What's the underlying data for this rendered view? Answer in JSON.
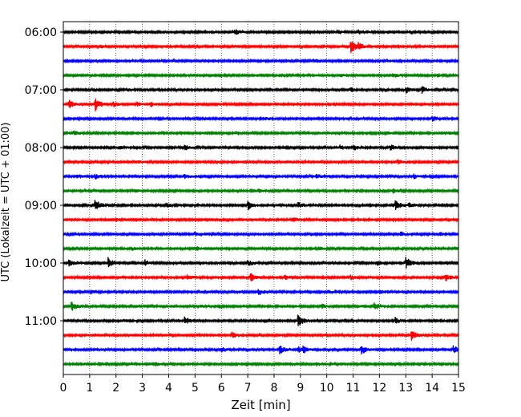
{
  "chart_data": {
    "type": "line",
    "title": "",
    "xlabel": "Zeit  [min]",
    "ylabel": "UTC (Lokalzeit = UTC + 01:00)",
    "xlim": [
      0,
      15
    ],
    "x_ticks": [
      0,
      1,
      2,
      3,
      4,
      5,
      6,
      7,
      8,
      9,
      10,
      11,
      12,
      13,
      14,
      15
    ],
    "x_tick_labels": [
      "0",
      "1",
      "2",
      "3",
      "4",
      "5",
      "6",
      "7",
      "8",
      "9",
      "10",
      "11",
      "12",
      "13",
      "14",
      "15"
    ],
    "y_tick_labels": [
      "06:00",
      "07:00",
      "08:00",
      "09:00",
      "10:00",
      "11:00"
    ],
    "y_tick_traces": [
      0,
      4,
      8,
      12,
      16,
      20
    ],
    "grid": "vertical dotted",
    "trace_colors": [
      "#000000",
      "#ff0000",
      "#0000ff",
      "#008000"
    ],
    "traces": [
      {
        "start": "06:00",
        "events": [
          [
            6.5,
            0.5
          ],
          [
            10.4,
            0.3
          ],
          [
            11.2,
            0.3
          ]
        ]
      },
      {
        "start": "06:15",
        "events": [
          [
            10.9,
            1.0
          ],
          [
            11.2,
            0.4
          ],
          [
            1.4,
            0.2
          ]
        ]
      },
      {
        "start": "06:30",
        "events": [
          [
            4.2,
            0.2
          ],
          [
            9.5,
            0.2
          ],
          [
            12.3,
            0.2
          ]
        ]
      },
      {
        "start": "06:45",
        "events": [
          [
            12.5,
            0.3
          ],
          [
            14.2,
            0.2
          ],
          [
            10.5,
            0.2
          ]
        ]
      },
      {
        "start": "07:00",
        "events": [
          [
            13.0,
            0.4
          ],
          [
            13.6,
            0.5
          ],
          [
            10.9,
            0.3
          ],
          [
            2.4,
            0.2
          ]
        ]
      },
      {
        "start": "07:15",
        "events": [
          [
            0.2,
            0.6
          ],
          [
            1.2,
            1.0
          ],
          [
            2.8,
            0.3
          ],
          [
            3.3,
            0.3
          ],
          [
            1.9,
            0.3
          ]
        ]
      },
      {
        "start": "07:30",
        "events": [
          [
            14.0,
            0.3
          ],
          [
            5.3,
            0.2
          ],
          [
            7.6,
            0.2
          ]
        ]
      },
      {
        "start": "07:45",
        "events": [
          [
            0.4,
            0.3
          ],
          [
            12.3,
            0.2
          ],
          [
            14.5,
            0.2
          ]
        ]
      },
      {
        "start": "08:00",
        "events": [
          [
            4.6,
            0.4
          ],
          [
            10.5,
            0.3
          ],
          [
            11.0,
            0.4
          ],
          [
            12.4,
            0.4
          ],
          [
            2.1,
            0.3
          ]
        ]
      },
      {
        "start": "08:15",
        "events": [
          [
            12.7,
            0.3
          ],
          [
            2.8,
            0.2
          ],
          [
            6.9,
            0.2
          ]
        ]
      },
      {
        "start": "08:30",
        "events": [
          [
            1.2,
            0.3
          ],
          [
            4.6,
            0.3
          ],
          [
            9.6,
            0.3
          ],
          [
            13.3,
            0.3
          ],
          [
            0.5,
            0.2
          ]
        ]
      },
      {
        "start": "08:45",
        "events": [
          [
            12.5,
            0.3
          ],
          [
            2.7,
            0.2
          ],
          [
            7.4,
            0.2
          ]
        ]
      },
      {
        "start": "09:00",
        "events": [
          [
            1.2,
            0.9
          ],
          [
            7.0,
            0.6
          ],
          [
            8.9,
            0.4
          ],
          [
            12.6,
            0.7
          ],
          [
            13.1,
            0.3
          ],
          [
            3.9,
            0.3
          ]
        ]
      },
      {
        "start": "09:15",
        "events": [
          [
            8.7,
            0.3
          ],
          [
            2.0,
            0.2
          ],
          [
            11.2,
            0.2
          ]
        ]
      },
      {
        "start": "09:30",
        "events": [
          [
            5.0,
            0.3
          ],
          [
            12.8,
            0.3
          ],
          [
            14.3,
            0.2
          ]
        ]
      },
      {
        "start": "09:45",
        "events": [
          [
            5.0,
            0.3
          ],
          [
            9.7,
            0.2
          ],
          [
            2.6,
            0.2
          ]
        ]
      },
      {
        "start": "10:00",
        "events": [
          [
            0.2,
            0.4
          ],
          [
            1.7,
            0.7
          ],
          [
            3.1,
            0.4
          ],
          [
            7.0,
            0.4
          ],
          [
            13.0,
            0.9
          ],
          [
            11.9,
            0.3
          ]
        ]
      },
      {
        "start": "10:15",
        "events": [
          [
            4.7,
            0.3
          ],
          [
            7.1,
            0.6
          ],
          [
            14.5,
            0.6
          ],
          [
            8.4,
            0.3
          ],
          [
            10.9,
            0.3
          ]
        ]
      },
      {
        "start": "10:30",
        "events": [
          [
            1.0,
            0.3
          ],
          [
            7.4,
            0.4
          ],
          [
            12.0,
            0.3
          ],
          [
            10.0,
            0.2
          ]
        ]
      },
      {
        "start": "10:45",
        "events": [
          [
            0.3,
            0.7
          ],
          [
            11.8,
            0.6
          ],
          [
            9.8,
            0.3
          ],
          [
            5.1,
            0.2
          ]
        ]
      },
      {
        "start": "11:00",
        "events": [
          [
            4.6,
            0.6
          ],
          [
            8.9,
            1.0
          ],
          [
            12.6,
            0.4
          ],
          [
            2.3,
            0.2
          ]
        ]
      },
      {
        "start": "11:15",
        "events": [
          [
            6.4,
            0.4
          ],
          [
            13.2,
            0.7
          ],
          [
            11.0,
            0.2
          ]
        ]
      },
      {
        "start": "11:30",
        "events": [
          [
            8.2,
            0.6
          ],
          [
            8.9,
            0.4
          ],
          [
            9.1,
            0.4
          ],
          [
            11.3,
            0.7
          ],
          [
            14.8,
            0.6
          ],
          [
            6.0,
            0.3
          ]
        ]
      },
      {
        "start": "11:45",
        "events": [
          [
            9.6,
            0.2
          ],
          [
            3.5,
            0.2
          ],
          [
            13.5,
            0.2
          ]
        ]
      }
    ]
  }
}
